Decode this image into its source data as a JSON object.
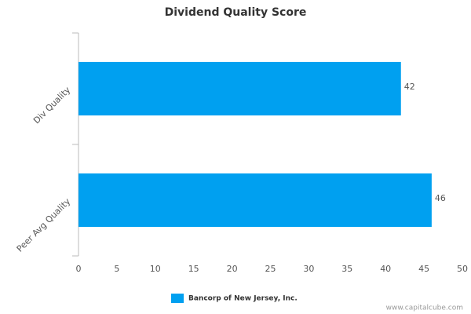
{
  "chart_data": {
    "type": "bar",
    "orientation": "horizontal",
    "title": "Dividend Quality Score",
    "categories": [
      "Div Quality",
      "Peer Avg Quality"
    ],
    "series": [
      {
        "name": "Bancorp of New Jersey, Inc.",
        "color": "#00a0f0",
        "values": [
          42,
          46
        ]
      }
    ],
    "xlim": [
      0,
      50
    ],
    "xticks": [
      0,
      5,
      10,
      15,
      20,
      25,
      30,
      35,
      40,
      45,
      50
    ],
    "grid": false,
    "legend": "bottom",
    "source": "www.capitalcube.com"
  }
}
